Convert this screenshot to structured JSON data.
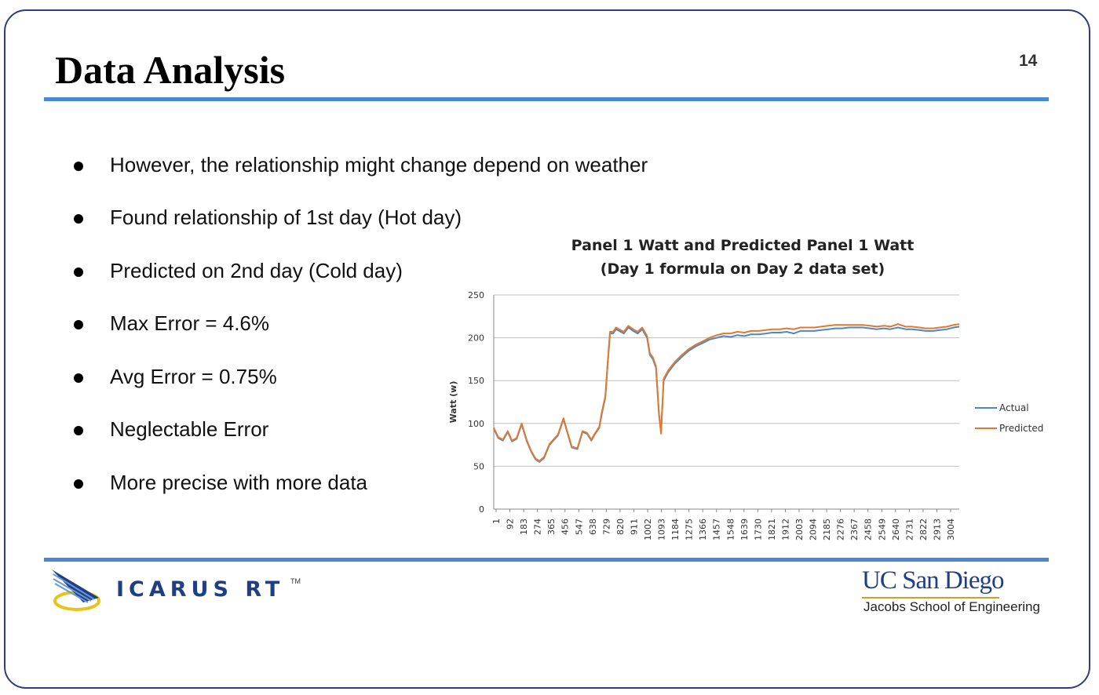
{
  "slide": {
    "title": "Data Analysis",
    "page_number": "14"
  },
  "bullets": [
    "However, the relationship might change depend on weather",
    "Found relationship of 1st day (Hot day)",
    "Predicted on 2nd day (Cold day)",
    "Max Error = 4.6%",
    "Avg Error = 0.75%",
    "Neglectable Error",
    "More precise with more data"
  ],
  "footer": {
    "left_logo_text": "ICARUS RT",
    "left_logo_tm": "TM",
    "right_logo_name": "UC San Diego",
    "right_logo_school": "Jacobs School of Engineering"
  },
  "colors": {
    "accent_rule": "#4a86d6",
    "frame": "#2e3d80",
    "actual": "#4f86c6",
    "predicted": "#e07a2f"
  },
  "chart_data": {
    "type": "line",
    "title": "Panel 1 Watt and Predicted Panel 1 Watt",
    "subtitle": "(Day 1 formula on Day 2 data set)",
    "ylabel": "Watt (w)",
    "xlabel": "",
    "ylim": [
      0,
      250
    ],
    "yticks": [
      0,
      50,
      100,
      150,
      200,
      250
    ],
    "grid": true,
    "legend_position": "right",
    "xticks": [
      "1",
      "92",
      "183",
      "274",
      "365",
      "456",
      "547",
      "638",
      "729",
      "820",
      "911",
      "1002",
      "1093",
      "1184",
      "1275",
      "1366",
      "1457",
      "1548",
      "1639",
      "1730",
      "1821",
      "1912",
      "2003",
      "2094",
      "2185",
      "2276",
      "2367",
      "2458",
      "2549",
      "2640",
      "2731",
      "2822",
      "2913",
      "3004"
    ],
    "x": [
      1,
      30,
      60,
      92,
      120,
      150,
      183,
      215,
      245,
      274,
      300,
      330,
      365,
      390,
      420,
      456,
      480,
      510,
      547,
      580,
      610,
      638,
      660,
      690,
      705,
      729,
      745,
      760,
      780,
      800,
      820,
      850,
      880,
      911,
      940,
      970,
      1002,
      1020,
      1040,
      1060,
      1080,
      1093,
      1110,
      1140,
      1184,
      1230,
      1275,
      1320,
      1366,
      1410,
      1457,
      1500,
      1548,
      1590,
      1639,
      1680,
      1730,
      1780,
      1821,
      1870,
      1912,
      1960,
      2003,
      2050,
      2094,
      2140,
      2185,
      2230,
      2276,
      2320,
      2367,
      2410,
      2458,
      2500,
      2549,
      2590,
      2640,
      2690,
      2731,
      2780,
      2822,
      2870,
      2913,
      2960,
      3004,
      3040
    ],
    "series": [
      {
        "name": "Actual",
        "color": "#4f86c6",
        "values": [
          94,
          83,
          80,
          90,
          79,
          82,
          99,
          80,
          67,
          58,
          55,
          60,
          75,
          80,
          86,
          105,
          90,
          72,
          70,
          90,
          88,
          80,
          87,
          95,
          110,
          130,
          170,
          205,
          205,
          210,
          208,
          205,
          212,
          208,
          205,
          210,
          200,
          180,
          175,
          165,
          110,
          90,
          150,
          160,
          170,
          178,
          185,
          190,
          194,
          198,
          200,
          202,
          201,
          203,
          202,
          204,
          204,
          205,
          206,
          206,
          207,
          205,
          208,
          208,
          208,
          209,
          210,
          211,
          211,
          212,
          212,
          212,
          211,
          210,
          211,
          210,
          212,
          210,
          210,
          209,
          208,
          208,
          209,
          210,
          212,
          213
        ]
      },
      {
        "name": "Predicted",
        "color": "#e07a2f",
        "values": [
          95,
          84,
          81,
          91,
          80,
          83,
          100,
          81,
          68,
          59,
          56,
          61,
          76,
          81,
          87,
          106,
          91,
          73,
          71,
          91,
          89,
          81,
          88,
          96,
          112,
          132,
          172,
          207,
          207,
          212,
          210,
          207,
          214,
          210,
          207,
          212,
          202,
          182,
          177,
          167,
          111,
          88,
          152,
          162,
          172,
          180,
          187,
          192,
          196,
          200,
          203,
          205,
          205,
          207,
          206,
          208,
          208,
          209,
          210,
          210,
          211,
          210,
          212,
          212,
          212,
          213,
          214,
          215,
          215,
          215,
          215,
          215,
          214,
          213,
          214,
          213,
          216,
          213,
          213,
          212,
          211,
          211,
          212,
          213,
          215,
          216
        ]
      }
    ]
  }
}
